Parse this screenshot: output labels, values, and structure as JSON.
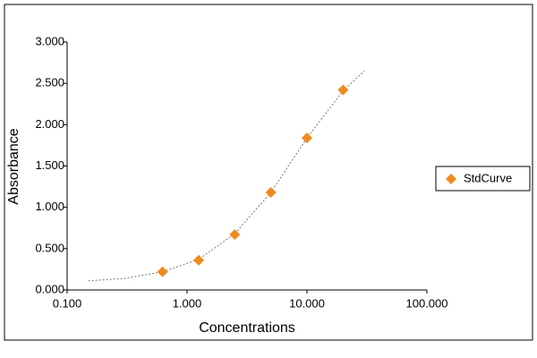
{
  "chart_data": {
    "type": "scatter",
    "x_label": "Concentrations",
    "y_label": "Absorbance",
    "x_log": true,
    "xlim": [
      0.1,
      100
    ],
    "xticks": [
      {
        "value": 0.1,
        "label": "0.100"
      },
      {
        "value": 1,
        "label": "1.000"
      },
      {
        "value": 10,
        "label": "10.000"
      },
      {
        "value": 100,
        "label": "100.000"
      }
    ],
    "ylim": [
      0,
      3
    ],
    "yticks": [
      {
        "value": 0,
        "label": "0.000"
      },
      {
        "value": 0.5,
        "label": "0.500"
      },
      {
        "value": 1,
        "label": "1.000"
      },
      {
        "value": 1.5,
        "label": "1.500"
      },
      {
        "value": 2,
        "label": "2.000"
      },
      {
        "value": 2.5,
        "label": "2.500"
      },
      {
        "value": 3,
        "label": "3.000"
      }
    ],
    "series": [
      {
        "name": "StdCurve",
        "color": "#ef8a1e",
        "x": [
          0.625,
          1.25,
          2.5,
          5,
          10,
          20
        ],
        "values": [
          0.22,
          0.36,
          0.67,
          1.18,
          1.84,
          2.42
        ]
      }
    ],
    "fit": {
      "color": "#777777",
      "x": [
        0.15,
        0.3,
        0.625,
        1.25,
        2.5,
        5,
        10,
        20,
        30
      ],
      "values": [
        0.11,
        0.14,
        0.22,
        0.37,
        0.68,
        1.18,
        1.84,
        2.41,
        2.65
      ]
    },
    "legend": "right"
  }
}
